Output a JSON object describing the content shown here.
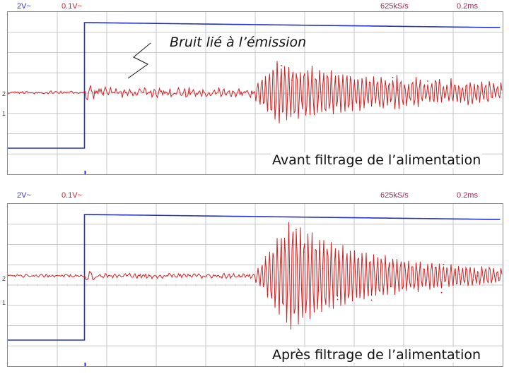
{
  "colors": {
    "ch1": "#2233cc",
    "ch2": "#d42020",
    "grid": "#c8c8c8",
    "header_meta": "#aa2255"
  },
  "panels": [
    {
      "header": {
        "ch1_scale": "2V~",
        "ch2_scale": "0.1V~",
        "sample_rate": "625kS/s",
        "timebase": "0.2ms"
      },
      "markers": {
        "ch2": "2",
        "ch1": "1"
      },
      "caption": "Avant filtrage de l’alimentation",
      "annotation": "Bruit lié à l’émission"
    },
    {
      "header": {
        "ch1_scale": "2V~",
        "ch2_scale": "0.1V~",
        "sample_rate": "625kS/s",
        "timebase": "0.2ms"
      },
      "markers": {
        "ch2": "2",
        "ch1": "1"
      },
      "caption": "Après filtrage de l’alimentation"
    }
  ],
  "chart_data": [
    {
      "type": "line",
      "x_axis": {
        "unit_per_div": "0.2ms",
        "divisions": 10
      },
      "series": [
        {
          "channel": "1",
          "color": "#2233cc",
          "values": [
            {
              "t_div": 0,
              "level": "low"
            },
            {
              "t_div": 1.55,
              "level": "low"
            },
            {
              "t_div": 1.55,
              "level": "high"
            },
            {
              "t_div": 10,
              "level": "high"
            }
          ]
        },
        {
          "channel": "2",
          "color": "#d42020",
          "noise_before_step": "small",
          "noise_after_step": "moderate",
          "burst_start_div": 5.0,
          "burst_peak_div": 5.5,
          "burst_end_div": 10
        }
      ]
    },
    {
      "type": "line",
      "x_axis": {
        "unit_per_div": "0.2ms",
        "divisions": 10
      },
      "series": [
        {
          "channel": "1",
          "color": "#2233cc",
          "values": [
            {
              "t_div": 0,
              "level": "low"
            },
            {
              "t_div": 1.55,
              "level": "low"
            },
            {
              "t_div": 1.55,
              "level": "high"
            },
            {
              "t_div": 10,
              "level": "high"
            }
          ]
        },
        {
          "channel": "2",
          "color": "#d42020",
          "noise_before_step": "small",
          "noise_after_step": "small",
          "burst_start_div": 5.0,
          "burst_peak_div": 5.8,
          "burst_end_div": 10
        }
      ]
    }
  ]
}
